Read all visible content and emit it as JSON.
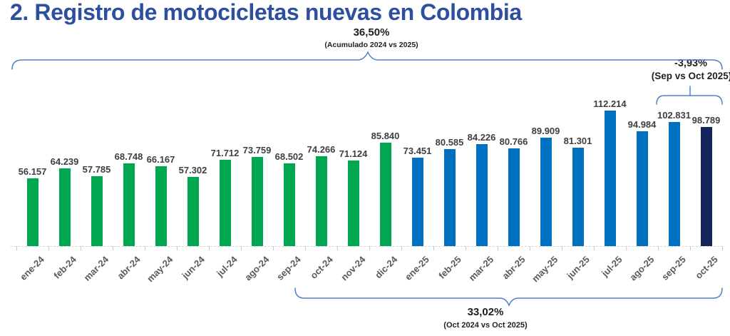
{
  "title": "2. Registro de motocicletas nuevas en Colombia",
  "annotations": {
    "acumulado": {
      "value": "36,50%",
      "caption": "(Acumulado 2024 vs 2025)"
    },
    "sep_vs_oct": {
      "value": "-3,93%",
      "caption": "(Sep vs Oct 2025)"
    },
    "oct_vs_oct": {
      "value": "33,02%",
      "caption": "(Oct 2024 vs Oct 2025)"
    }
  },
  "chart_data": {
    "type": "bar",
    "title": "Registro de motocicletas nuevas en Colombia",
    "categories": [
      "ene-24",
      "feb-24",
      "mar-24",
      "abr-24",
      "may-24",
      "jun-24",
      "jul-24",
      "ago-24",
      "sep-24",
      "oct-24",
      "nov-24",
      "dic-24",
      "ene-25",
      "feb-25",
      "mar-25",
      "abr-25",
      "may-25",
      "jun-25",
      "jul-25",
      "ago-25",
      "sep-25",
      "oct-25"
    ],
    "values": [
      56157,
      64239,
      57785,
      68748,
      66167,
      57302,
      71712,
      73759,
      68502,
      74266,
      71124,
      85840,
      73451,
      80585,
      84226,
      80766,
      89909,
      81301,
      112214,
      94984,
      102831,
      98789
    ],
    "value_labels": [
      "56.157",
      "64.239",
      "57.785",
      "68.748",
      "66.167",
      "57.302",
      "71.712",
      "73.759",
      "68.502",
      "74.266",
      "71.124",
      "85.840",
      "73.451",
      "80.585",
      "84.226",
      "80.766",
      "89.909",
      "81.301",
      "112.214",
      "94.984",
      "102.831",
      "98.789"
    ],
    "segments": [
      {
        "name": "2024",
        "color": "#00A650",
        "count": 12
      },
      {
        "name": "2025",
        "color": "#0070C0",
        "count": 9
      },
      {
        "name": "oct-25-destacado",
        "color": "#12265C",
        "count": 1
      }
    ],
    "ylim": [
      0,
      120000
    ],
    "grid": false,
    "legend": "none",
    "data_labels": "outside-end",
    "x_label_rotation": -45
  },
  "colors": {
    "title": "#2E4FA0",
    "brace": "#4F81C7",
    "bar_green": "#00A650",
    "bar_blue": "#0070C0",
    "bar_navy": "#12265C",
    "value_label": "#3F3F3F",
    "axis_label": "#595959",
    "annotation_text": "#1F1F1F"
  }
}
